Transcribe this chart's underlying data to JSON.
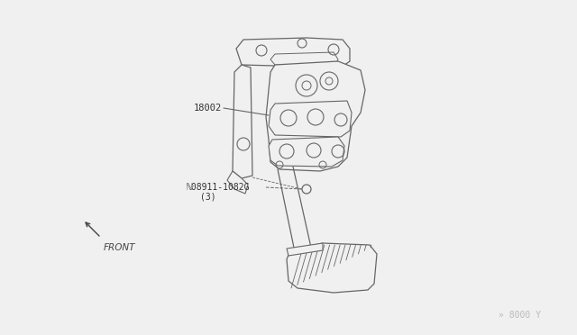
{
  "bg_color": "#f0f0f0",
  "line_color": "#666666",
  "label_18002": "18002",
  "label_bolt": "ℕ08911-1082G",
  "label_bolt2": "(3)",
  "label_front": "FRONT",
  "label_diagram_num": "» 8000 Y",
  "fig_width": 6.4,
  "fig_height": 3.72,
  "dpi": 100
}
